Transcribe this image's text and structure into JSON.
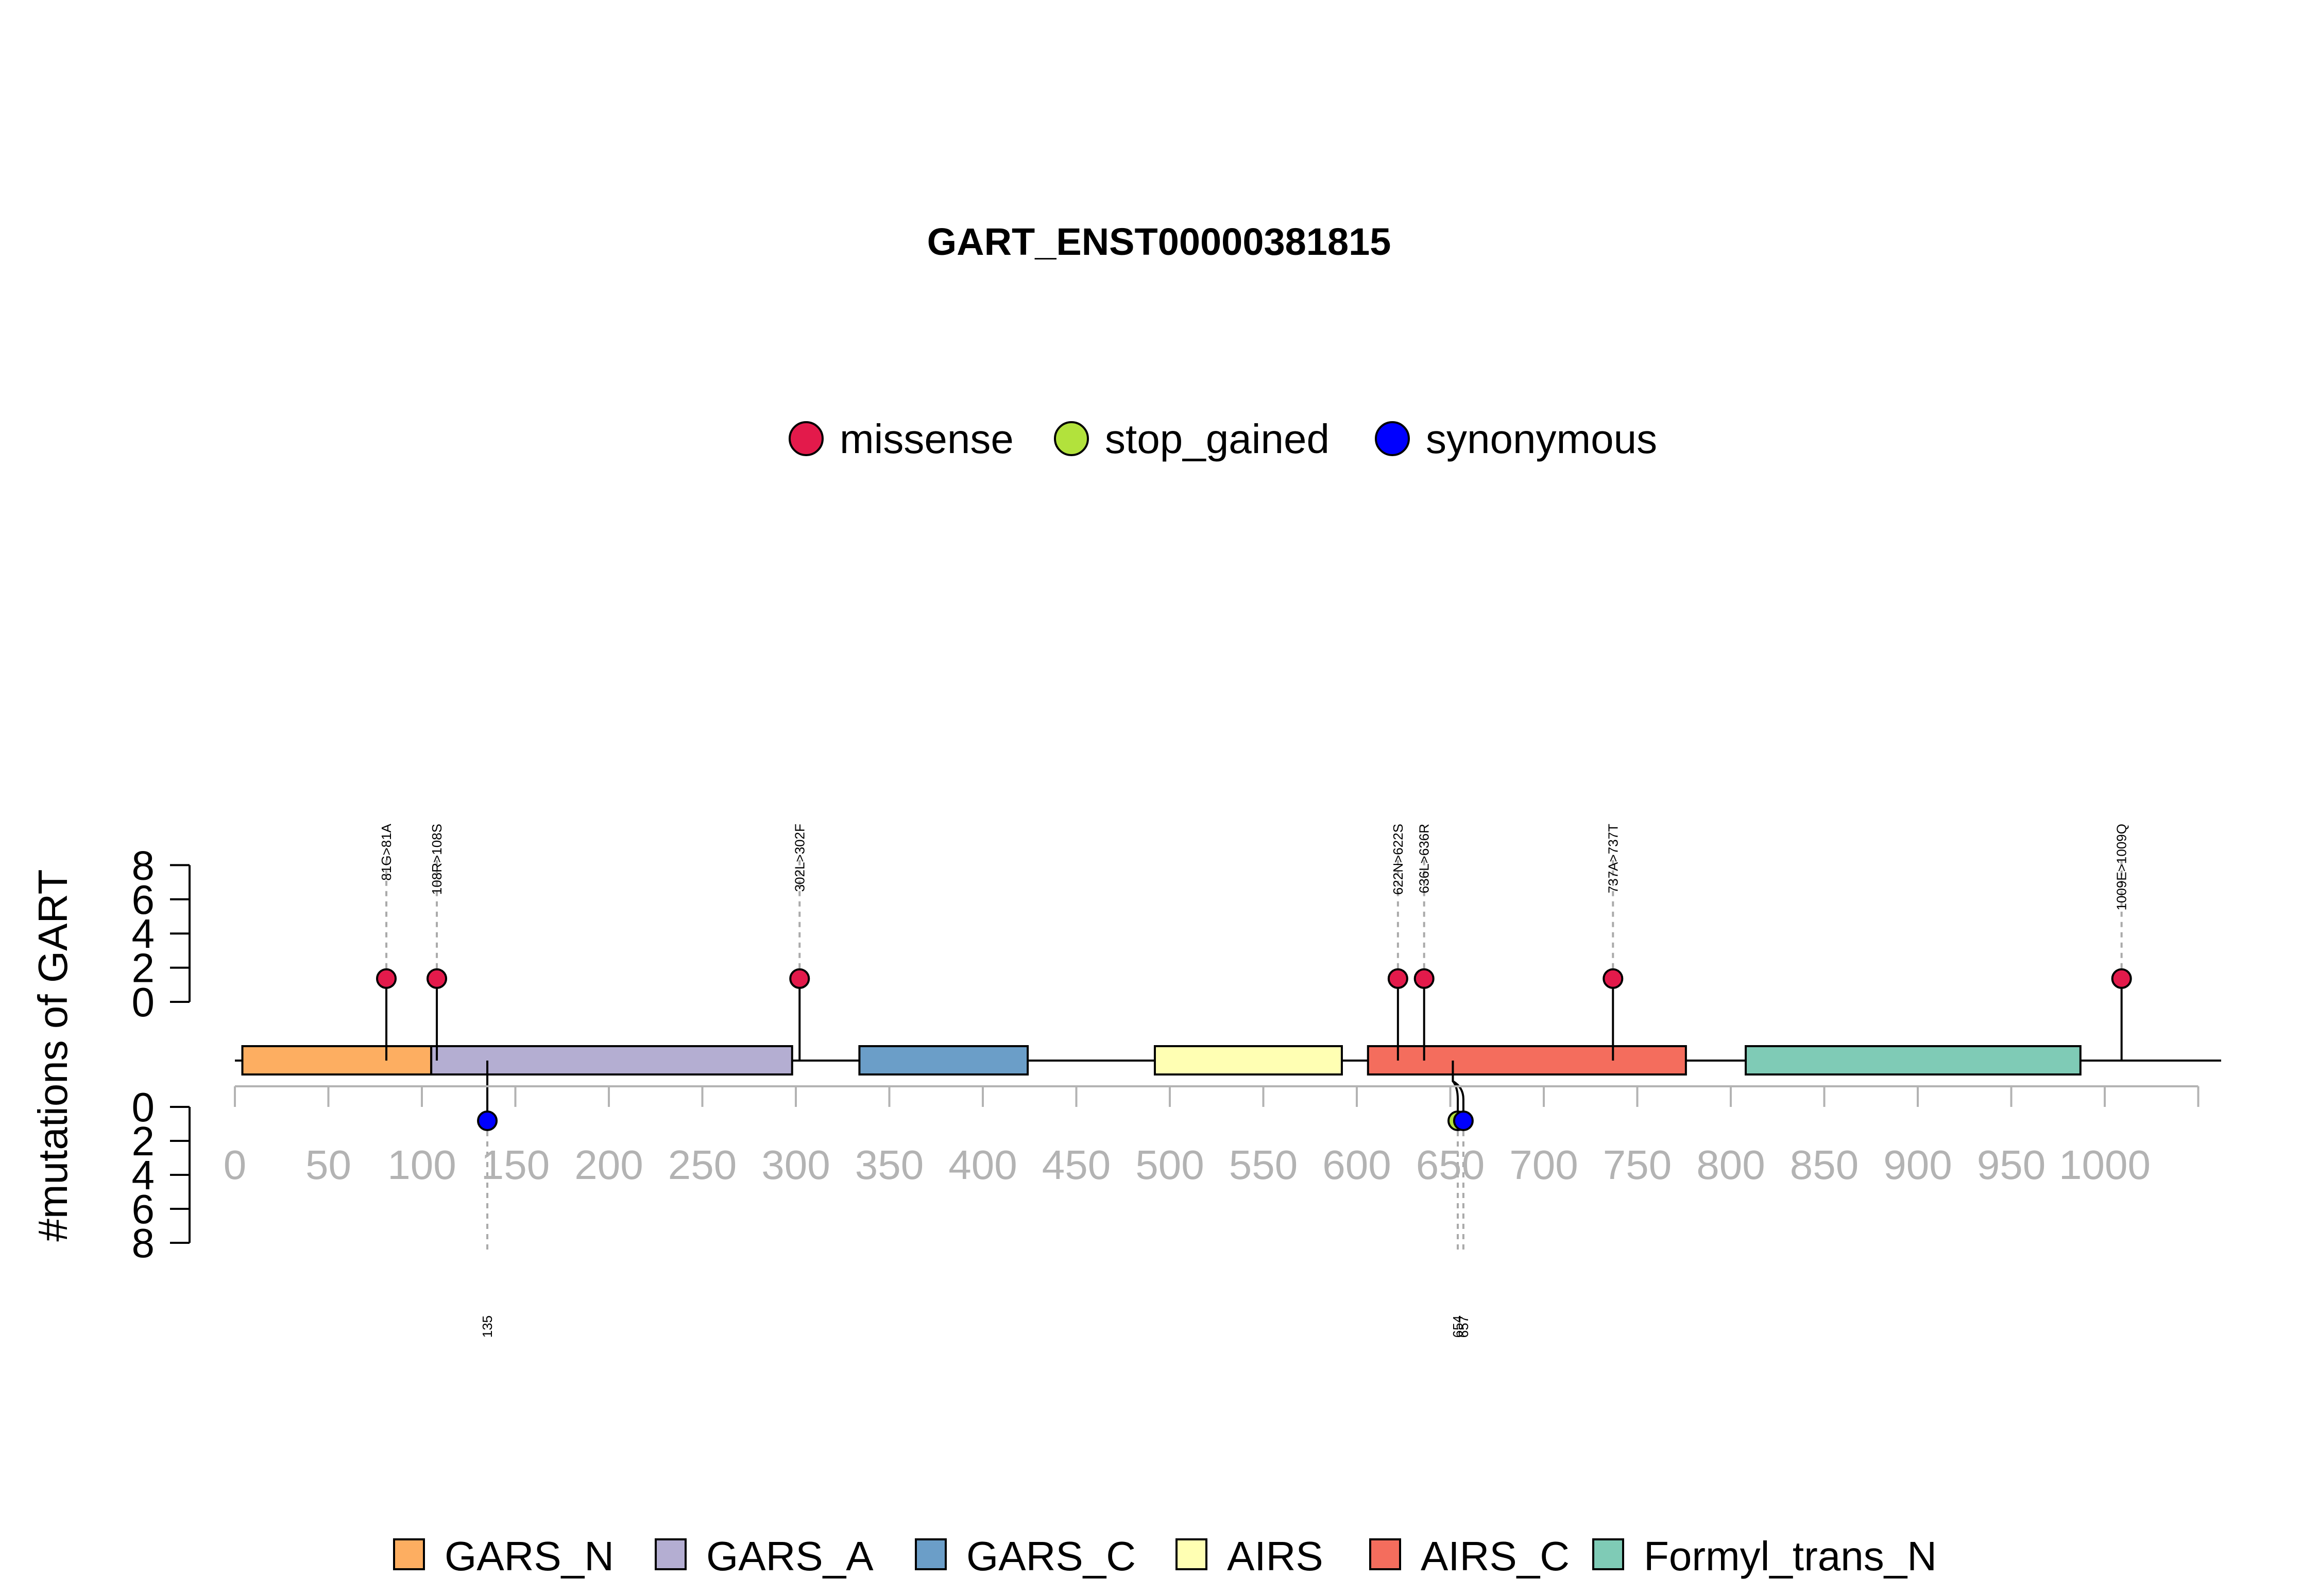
{
  "chart_data": {
    "type": "lollipop",
    "title": "GART_ENST00000381815",
    "ylabel": "#mutations of GART",
    "xlim": [
      0,
      1050
    ],
    "x_ticks": [
      0,
      50,
      100,
      150,
      200,
      250,
      300,
      350,
      400,
      450,
      500,
      550,
      600,
      650,
      700,
      750,
      800,
      850,
      900,
      950,
      1000
    ],
    "y_ticks": [
      0,
      2,
      4,
      6,
      8
    ],
    "ylim": [
      0,
      8
    ],
    "mutation_types": [
      {
        "name": "missense",
        "color": "#e31a4b"
      },
      {
        "name": "stop_gained",
        "color": "#b2e23c"
      },
      {
        "name": "synonymous",
        "color": "#0000ff"
      }
    ],
    "domains": [
      {
        "name": "GARS_N",
        "start": 4,
        "end": 105,
        "color": "#fdae61"
      },
      {
        "name": "GARS_A",
        "start": 105,
        "end": 298,
        "color": "#b4aed2"
      },
      {
        "name": "GARS_C",
        "start": 334,
        "end": 424,
        "color": "#6b9ec8"
      },
      {
        "name": "AIRS",
        "start": 492,
        "end": 592,
        "color": "#ffffb3"
      },
      {
        "name": "AIRS_C",
        "start": 606,
        "end": 776,
        "color": "#f46d5d"
      },
      {
        "name": "Formyl_trans_N",
        "start": 808,
        "end": 987,
        "color": "#7fcbb6"
      }
    ],
    "mutations_top": [
      {
        "pos": 81,
        "label": "81G>81A",
        "type": "missense",
        "count": 1
      },
      {
        "pos": 108,
        "label": "108R>108S",
        "type": "missense",
        "count": 1
      },
      {
        "pos": 302,
        "label": "302L>302F",
        "type": "missense",
        "count": 1
      },
      {
        "pos": 622,
        "label": "622N>622S",
        "type": "missense",
        "count": 1
      },
      {
        "pos": 636,
        "label": "636L>636R",
        "type": "missense",
        "count": 1
      },
      {
        "pos": 737,
        "label": "737A>737T",
        "type": "missense",
        "count": 1
      },
      {
        "pos": 1009,
        "label": "1009E>1009Q",
        "type": "missense",
        "count": 1
      }
    ],
    "mutations_bottom": [
      {
        "pos": 135,
        "label": "135",
        "type": "synonymous",
        "count": 1
      },
      {
        "pos": 654,
        "label": "654",
        "type": "stop_gained",
        "count": 1
      },
      {
        "pos": 657,
        "label": "657",
        "type": "synonymous",
        "count": 1
      }
    ],
    "legend_position": "top-center",
    "domain_legend_position": "bottom-center"
  }
}
